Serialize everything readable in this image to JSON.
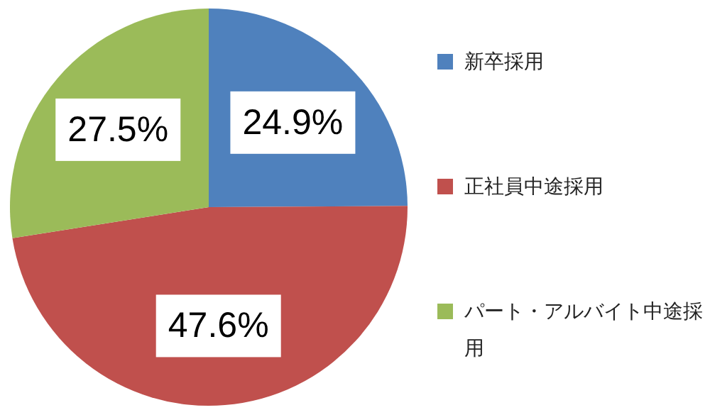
{
  "chart_data": {
    "type": "pie",
    "categories": [
      "新卒採用",
      "正社員中途採用",
      "パート・アルバイト中途採用"
    ],
    "values": [
      24.9,
      47.6,
      27.5
    ],
    "colors": [
      "#4f81bd",
      "#c0504d",
      "#9bbb59"
    ],
    "value_labels": [
      "24.9%",
      "47.6%",
      "27.5%"
    ],
    "legend": "right"
  }
}
